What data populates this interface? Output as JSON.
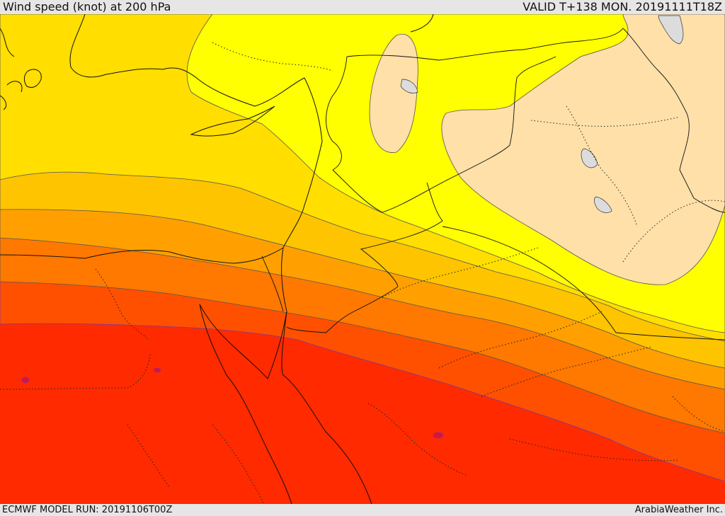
{
  "header": {
    "title": "Wind speed (knot) at 200 hPa",
    "valid": "VALID T+138 MON. 20191111T18Z"
  },
  "footer": {
    "model_run": "ECMWF MODEL RUN: 20191106T00Z",
    "brand": "ArabiaWeather Inc."
  },
  "colors": {
    "band_1": "#ffe0a8",
    "band_2": "#ffff00",
    "band_3": "#ffde00",
    "band_4": "#ffc400",
    "band_5": "#ffa000",
    "band_6": "#ff7800",
    "band_7": "#ff5000",
    "band_8": "#ff2a00",
    "water": "#dcdcdc"
  }
}
